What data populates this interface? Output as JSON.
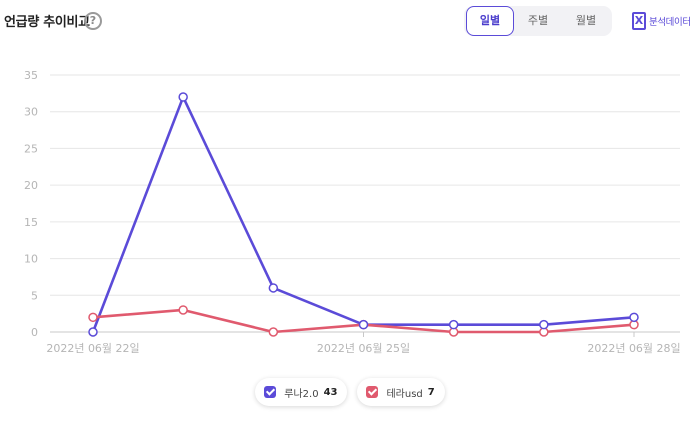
{
  "header": {
    "title": "언급량 추이비교",
    "help_glyph": "?",
    "tabs": [
      {
        "label": "일별",
        "active": true
      },
      {
        "label": "주별",
        "active": false
      },
      {
        "label": "월별",
        "active": false
      }
    ],
    "export_icon_glyph": "X",
    "export_label": "분석데이터"
  },
  "legend": [
    {
      "name": "루나2.0",
      "total": "43",
      "color": "#5b4bd8"
    },
    {
      "name": "테라usd",
      "total": "7",
      "color": "#e05a6e"
    }
  ],
  "chart_data": {
    "type": "line",
    "x": [
      "2022-06-22",
      "2022-06-23",
      "2022-06-24",
      "2022-06-25",
      "2022-06-26",
      "2022-06-27",
      "2022-06-28"
    ],
    "x_tick_labels": [
      "2022년 06월 22일",
      "2022년 06월 25일",
      "2022년 06월 28일"
    ],
    "x_tick_index": [
      0,
      3,
      6
    ],
    "ylim": [
      0,
      35
    ],
    "yticks": [
      0,
      5,
      10,
      15,
      20,
      25,
      30,
      35
    ],
    "grid": true,
    "legend_position": "bottom",
    "series": [
      {
        "name": "루나2.0",
        "color": "#5b4bd8",
        "values": [
          0,
          32,
          6,
          1,
          1,
          1,
          2
        ]
      },
      {
        "name": "테라usd",
        "color": "#e05a6e",
        "values": [
          2,
          3,
          0,
          1,
          0,
          0,
          1
        ]
      }
    ]
  }
}
